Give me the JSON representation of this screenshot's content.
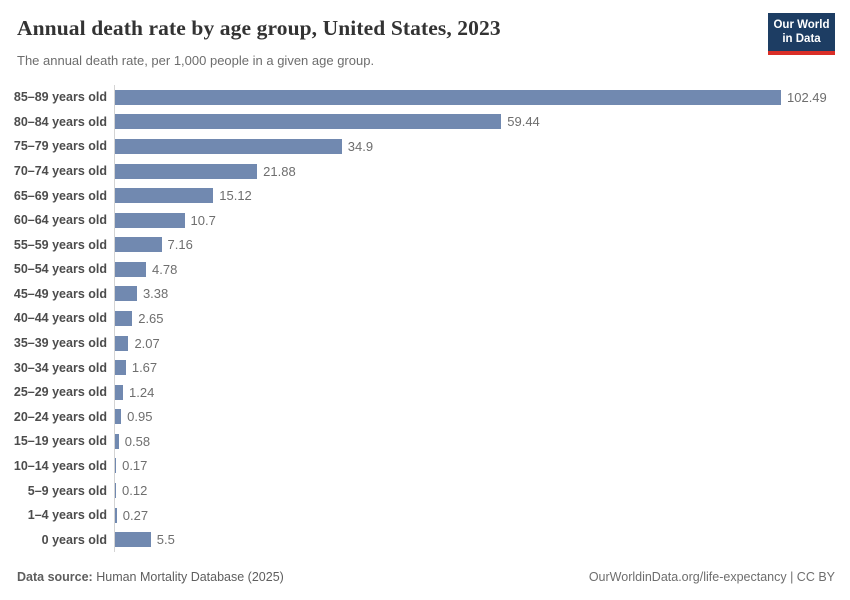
{
  "header": {
    "title": "Annual death rate by age group, United States, 2023",
    "subtitle": "The annual death rate, per 1,000 people in a given age group.",
    "logo": {
      "line1": "Our World",
      "line2": "in Data"
    }
  },
  "chart_data": {
    "type": "bar",
    "orientation": "horizontal",
    "title": "Annual death rate by age group, United States, 2023",
    "subtitle": "The annual death rate, per 1,000 people in a given age group.",
    "unit": "deaths per 1,000 people",
    "xlim": [
      0,
      102.49
    ],
    "grid": false,
    "legend": false,
    "categories": [
      "85–89 years old",
      "80–84 years old",
      "75–79 years old",
      "70–74 years old",
      "65–69 years old",
      "60–64 years old",
      "55–59 years old",
      "50–54 years old",
      "45–49 years old",
      "40–44 years old",
      "35–39 years old",
      "30–34 years old",
      "25–29 years old",
      "20–24 years old",
      "15–19 years old",
      "10–14 years old",
      "5–9 years old",
      "1–4 years old",
      "0 years old"
    ],
    "values": [
      102.49,
      59.44,
      34.9,
      21.88,
      15.12,
      10.7,
      7.16,
      4.78,
      3.38,
      2.65,
      2.07,
      1.67,
      1.24,
      0.95,
      0.58,
      0.17,
      0.12,
      0.27,
      5.5
    ],
    "value_labels": [
      "102.49",
      "59.44",
      "34.9",
      "21.88",
      "15.12",
      "10.7",
      "7.16",
      "4.78",
      "3.38",
      "2.65",
      "2.07",
      "1.67",
      "1.24",
      "0.95",
      "0.58",
      "0.17",
      "0.12",
      "0.27",
      "5.5"
    ]
  },
  "footer": {
    "datasource_label": "Data source:",
    "datasource_value": "Human Mortality Database (2025)",
    "link": "OurWorldinData.org/life-expectancy | CC BY"
  },
  "colors": {
    "bar": "#7189b0",
    "logo_bg": "#1d3d63",
    "logo_stripe": "#da2e27",
    "axis_line": "#d4d4d4",
    "title_text": "#333333",
    "muted_text": "#6e6e6e"
  }
}
